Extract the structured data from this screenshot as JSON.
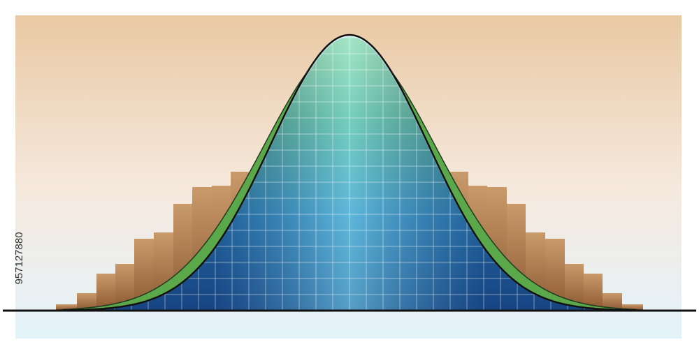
{
  "watermark": {
    "id": "957127880"
  }
}
